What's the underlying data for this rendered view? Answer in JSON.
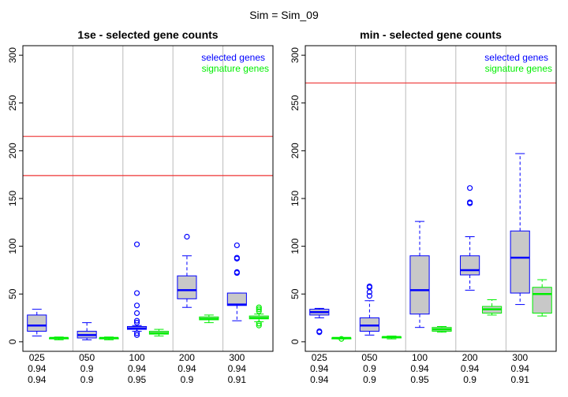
{
  "figure_title": "Sim = Sim_09",
  "colors": {
    "selected": "#0000ff",
    "signature": "#00ee00",
    "box_fill": "#c8c8c8",
    "hline": "#ee3333",
    "grid": "#bbbbbb"
  },
  "chart_data": [
    {
      "type": "boxplot",
      "title": "1se - selected gene counts",
      "ylim": [
        -10,
        310
      ],
      "yticks": [
        0,
        50,
        100,
        150,
        200,
        250,
        300
      ],
      "grid": "vertical lines between groups",
      "legend_position": "top-right",
      "legend": [
        "selected genes",
        "signature genes"
      ],
      "categories": [
        "025",
        "050",
        "100",
        "200",
        "300"
      ],
      "row2_labels": [
        "0.94",
        "0.9",
        "0.94",
        "0.94",
        "0.94"
      ],
      "row3_labels": [
        "0.94",
        "0.9",
        "0.95",
        "0.9",
        "0.91"
      ],
      "hlines": [
        215,
        174
      ],
      "series": [
        {
          "name": "selected genes",
          "boxes": [
            {
              "min": 6,
              "q1": 11,
              "median": 17,
              "q3": 28,
              "max": 34,
              "outliers": []
            },
            {
              "min": 2,
              "q1": 4,
              "median": 7,
              "q3": 11,
              "max": 20,
              "outliers": []
            },
            {
              "min": 11,
              "q1": 13,
              "median": 14,
              "q3": 16,
              "max": 17,
              "outliers": [
                102,
                51,
                38,
                30,
                22,
                20,
                9,
                7
              ]
            },
            {
              "min": 36,
              "q1": 45,
              "median": 54,
              "q3": 69,
              "max": 90,
              "outliers": [
                110
              ]
            },
            {
              "min": 22,
              "q1": 38,
              "median": 39,
              "q3": 51,
              "max": 51,
              "outliers": [
                101,
                88,
                87,
                73,
                72
              ]
            }
          ]
        },
        {
          "name": "signature genes",
          "boxes": [
            {
              "min": 2,
              "q1": 3,
              "median": 4,
              "q3": 4,
              "max": 5,
              "outliers": []
            },
            {
              "min": 2,
              "q1": 3,
              "median": 4,
              "q3": 4,
              "max": 5,
              "outliers": []
            },
            {
              "min": 6,
              "q1": 8,
              "median": 9,
              "q3": 11,
              "max": 13,
              "outliers": []
            },
            {
              "min": 20,
              "q1": 23,
              "median": 24,
              "q3": 26,
              "max": 28,
              "outliers": []
            },
            {
              "min": 21,
              "q1": 24,
              "median": 25,
              "q3": 27,
              "max": 29,
              "outliers": [
                36,
                34,
                32,
                19,
                17
              ]
            }
          ]
        }
      ]
    },
    {
      "type": "boxplot",
      "title": "min - selected gene counts",
      "ylim": [
        -10,
        310
      ],
      "yticks": [
        0,
        50,
        100,
        150,
        200,
        250,
        300
      ],
      "grid": "vertical lines between groups",
      "legend_position": "top-right",
      "legend": [
        "selected genes",
        "signature genes"
      ],
      "categories": [
        "025",
        "050",
        "100",
        "200",
        "300"
      ],
      "row2_labels": [
        "0.94",
        "0.9",
        "0.94",
        "0.94",
        "0.94"
      ],
      "row3_labels": [
        "0.94",
        "0.9",
        "0.95",
        "0.9",
        "0.91"
      ],
      "hlines": [
        271
      ],
      "series": [
        {
          "name": "selected genes",
          "boxes": [
            {
              "min": 25,
              "q1": 28,
              "median": 31,
              "q3": 34,
              "max": 35,
              "outliers": [
                11,
                10
              ]
            },
            {
              "min": 7,
              "q1": 11,
              "median": 17,
              "q3": 25,
              "max": 43,
              "outliers": [
                58,
                57,
                52,
                48
              ]
            },
            {
              "min": 15,
              "q1": 29,
              "median": 54,
              "q3": 90,
              "max": 126,
              "outliers": []
            },
            {
              "min": 54,
              "q1": 70,
              "median": 75,
              "q3": 90,
              "max": 110,
              "outliers": [
                161,
                146,
                145
              ]
            },
            {
              "min": 39,
              "q1": 51,
              "median": 88,
              "q3": 116,
              "max": 197,
              "outliers": []
            }
          ]
        },
        {
          "name": "signature genes",
          "boxes": [
            {
              "min": 3,
              "q1": 3,
              "median": 4,
              "q3": 4,
              "max": 4,
              "outliers": [
                3
              ]
            },
            {
              "min": 3,
              "q1": 4,
              "median": 5,
              "q3": 5,
              "max": 6,
              "outliers": []
            },
            {
              "min": 10,
              "q1": 11,
              "median": 13,
              "q3": 15,
              "max": 16,
              "outliers": []
            },
            {
              "min": 28,
              "q1": 30,
              "median": 34,
              "q3": 37,
              "max": 44,
              "outliers": []
            },
            {
              "min": 27,
              "q1": 30,
              "median": 50,
              "q3": 57,
              "max": 65,
              "outliers": []
            }
          ]
        }
      ]
    }
  ]
}
